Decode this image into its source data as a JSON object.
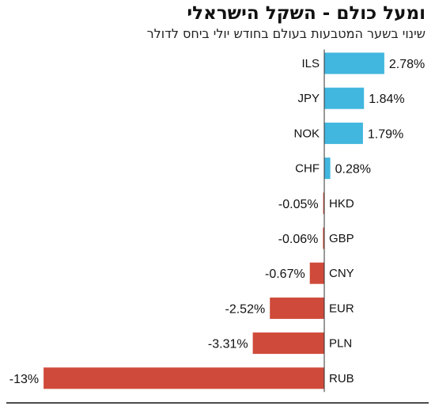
{
  "title": "ומעל כולם - השקל הישראלי",
  "subtitle": "שינוי בשער המטבעות בעולם בחודש יולי ביחס לדולר",
  "colors": {
    "positive": "#41b6de",
    "negative": "#cf4a3a",
    "axis": "#333333"
  },
  "chart_data": {
    "type": "bar",
    "orientation": "horizontal",
    "categories": [
      "ILS",
      "JPY",
      "NOK",
      "CHF",
      "HKD",
      "GBP",
      "CNY",
      "EUR",
      "PLN",
      "RUB"
    ],
    "values": [
      2.78,
      1.84,
      1.79,
      0.28,
      -0.05,
      -0.06,
      -0.67,
      -2.52,
      -3.31,
      -13
    ],
    "value_labels": [
      "2.78%",
      "1.84%",
      "1.79%",
      "0.28%",
      "-0.05%",
      "-0.06%",
      "-0.67%",
      "-2.52%",
      "-3.31%",
      "-13%"
    ],
    "title": "ומעל כולם - השקל הישראלי",
    "subtitle": "שינוי בשער המטבעות בעולם בחודש יולי ביחס לדולר",
    "xlim": [
      -13,
      2.78
    ],
    "grid": false
  }
}
